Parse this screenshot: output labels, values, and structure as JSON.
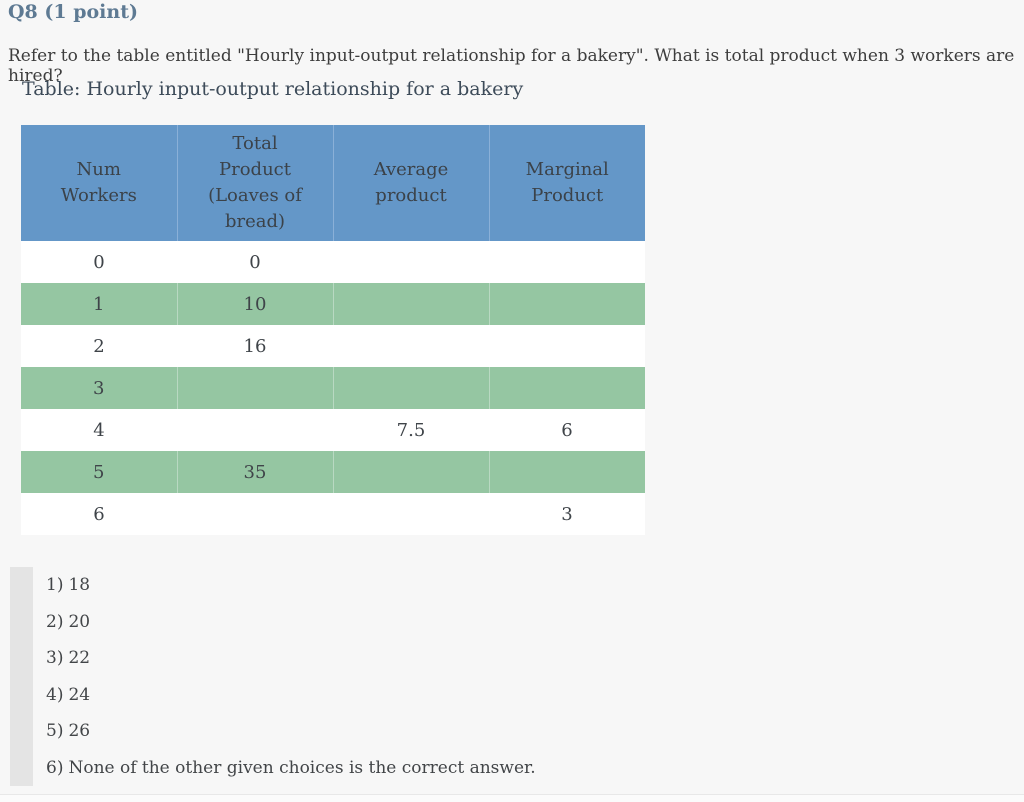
{
  "question_header": "Q8 (1 point)",
  "question_text": "Refer to the table entitled \"Hourly input-output relationship for a bakery\". What is total product when 3 workers are hired?",
  "table": {
    "title": "Table: Hourly input-output relationship for a bakery",
    "headers": [
      "Num\nWorkers",
      "Total\nProduct\n(Loaves of\nbread)",
      "Average\nproduct",
      "Marginal\nProduct"
    ],
    "rows": [
      [
        "0",
        "0",
        "",
        ""
      ],
      [
        "1",
        "10",
        "",
        ""
      ],
      [
        "2",
        "16",
        "",
        ""
      ],
      [
        "3",
        "",
        "",
        ""
      ],
      [
        "4",
        "",
        "7.5",
        "6"
      ],
      [
        "5",
        "35",
        "",
        ""
      ],
      [
        "6",
        "",
        "",
        "3"
      ]
    ]
  },
  "choices": [
    {
      "number": "1)",
      "text": "18"
    },
    {
      "number": "2)",
      "text": "20"
    },
    {
      "number": "3)",
      "text": "22"
    },
    {
      "number": "4)",
      "text": "24"
    },
    {
      "number": "5)",
      "text": "26"
    },
    {
      "number": "6)",
      "text": "None of the other given choices is the correct answer."
    }
  ],
  "colors": {
    "page_bg": "#f7f7f7",
    "header_blue": "#6497c8",
    "row_green": "#95c6a2",
    "accent_slate": "#5e7a93",
    "choice_bar_gray": "#e4e4e4"
  }
}
